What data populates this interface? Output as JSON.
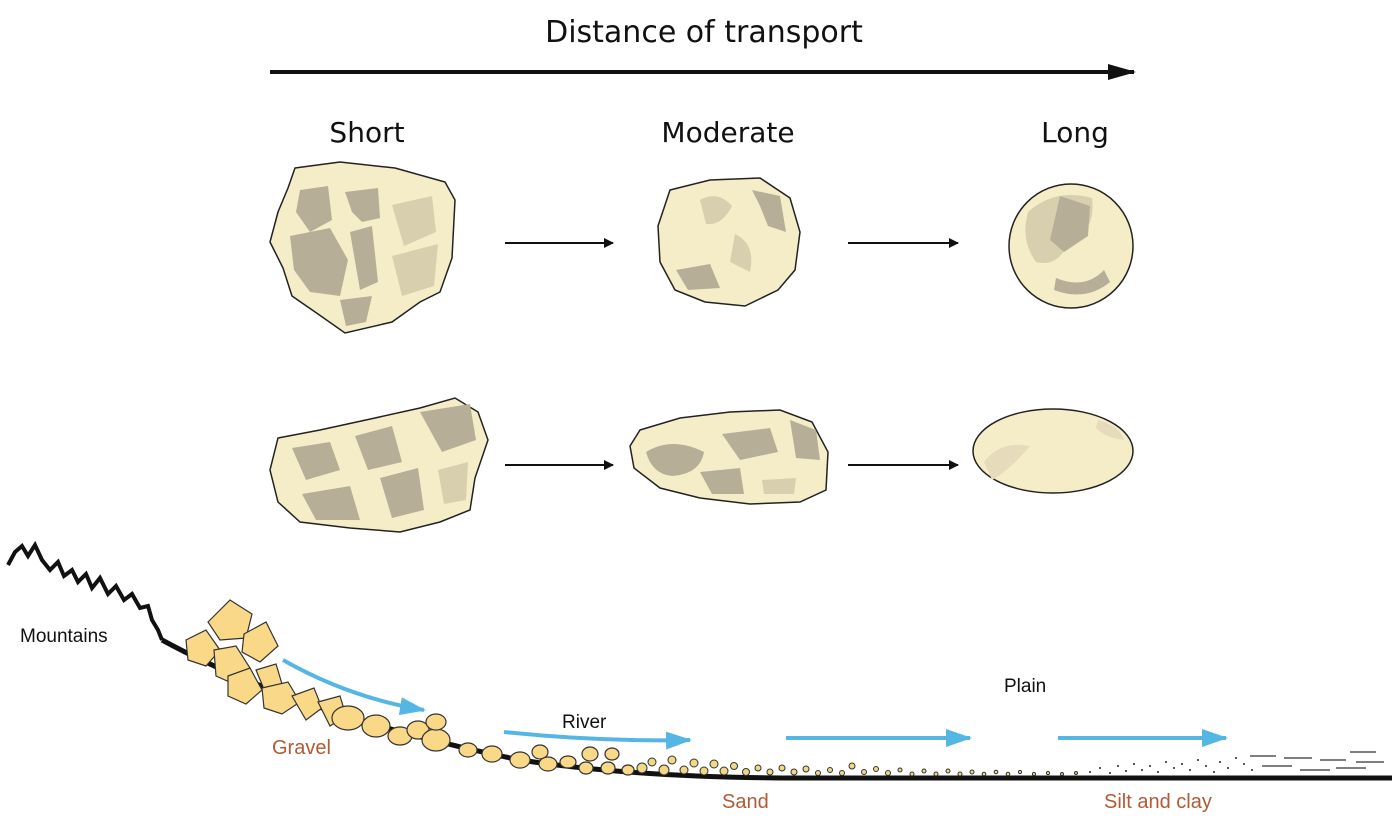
{
  "title": "Distance of transport",
  "columns": {
    "short": "Short",
    "moderate": "Moderate",
    "long": "Long"
  },
  "labels": {
    "mountains": "Mountains",
    "river": "River",
    "plain": "Plain",
    "gravel": "Gravel",
    "sand": "Sand",
    "silt_clay": "Silt and clay"
  },
  "colors": {
    "grain_fill": "#f5edc8",
    "grain_shade": "#b7ae98",
    "grain_shade_light": "#d8cfae",
    "gravel_fill": "#f9d987",
    "sand_fill": "#f0d886",
    "flow_arrow": "#56b6e3",
    "sediment_label": "#b25a34",
    "ink": "#111111"
  },
  "icons": {
    "title_arrow": "right-arrow-icon",
    "stage_arrow": "right-arrow-icon",
    "flow_arrow": "blue-flow-arrow-icon"
  }
}
